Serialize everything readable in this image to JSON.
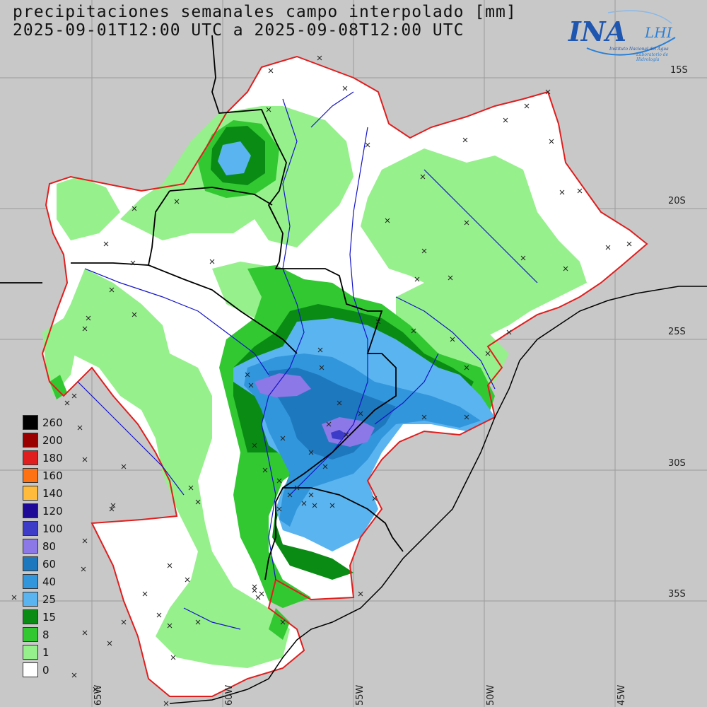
{
  "map": {
    "title_line1": "precipitaciones semanales campo interpolado [mm]",
    "title_line2": "2025-09-01T12:00 UTC a 2025-09-08T12:00 UTC"
  },
  "logo": {
    "main": "INA",
    "secondary": "LHI",
    "subtitle1": "Instituto Nacional del Agua",
    "subtitle2": "Laboratorio de Hidrología"
  },
  "legend": {
    "entries": [
      {
        "label": "260",
        "color": "#000000"
      },
      {
        "label": "200",
        "color": "#9b0000"
      },
      {
        "label": "180",
        "color": "#e01e1e"
      },
      {
        "label": "160",
        "color": "#ff7214"
      },
      {
        "label": "140",
        "color": "#ffbc3c"
      },
      {
        "label": "120",
        "color": "#1e0a96"
      },
      {
        "label": "100",
        "color": "#3c3cc8"
      },
      {
        "label": "80",
        "color": "#8c78e6"
      },
      {
        "label": "60",
        "color": "#1e78be"
      },
      {
        "label": "40",
        "color": "#3296dc"
      },
      {
        "label": "25",
        "color": "#5ab4f0"
      },
      {
        "label": "15",
        "color": "#0a8c14"
      },
      {
        "label": "8",
        "color": "#32c832"
      },
      {
        "label": "1",
        "color": "#96f08c"
      },
      {
        "label": "0",
        "color": "#ffffff"
      }
    ]
  },
  "axes": {
    "lat_labels": [
      "15S",
      "20S",
      "25S",
      "30S",
      "35S"
    ],
    "lon_labels": [
      "65W",
      "60W",
      "55W",
      "50W",
      "45W"
    ]
  }
}
